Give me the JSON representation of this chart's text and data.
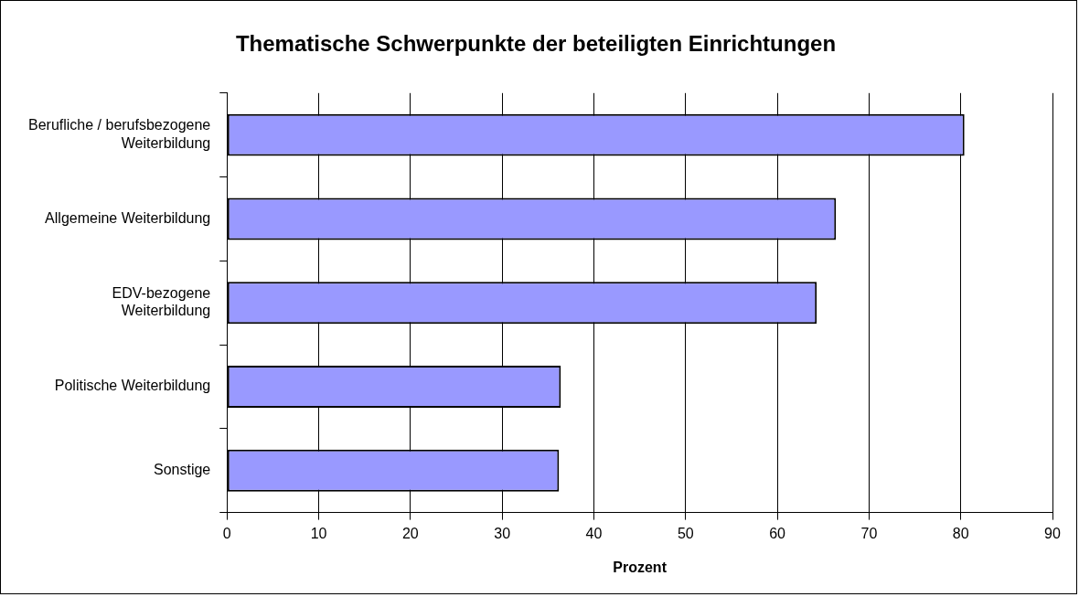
{
  "chart_data": {
    "type": "bar",
    "orientation": "horizontal",
    "title": "Thematische Schwerpunkte der beteiligten Einrichtungen",
    "xlabel": "Prozent",
    "categories": [
      "Berufliche / berufsbezogene\nWeiterbildung",
      "Allgemeine Weiterbildung",
      "EDV-bezogene\nWeiterbildung",
      "Politische Weiterbildung",
      "Sonstige"
    ],
    "values": [
      80.4,
      66.4,
      64.3,
      36.4,
      36.2
    ],
    "color": "#9999ff",
    "xlim": [
      0,
      90
    ],
    "xticks": [
      0,
      10,
      20,
      30,
      40,
      50,
      60,
      70,
      80,
      90
    ],
    "grid": "x",
    "legend": false
  }
}
